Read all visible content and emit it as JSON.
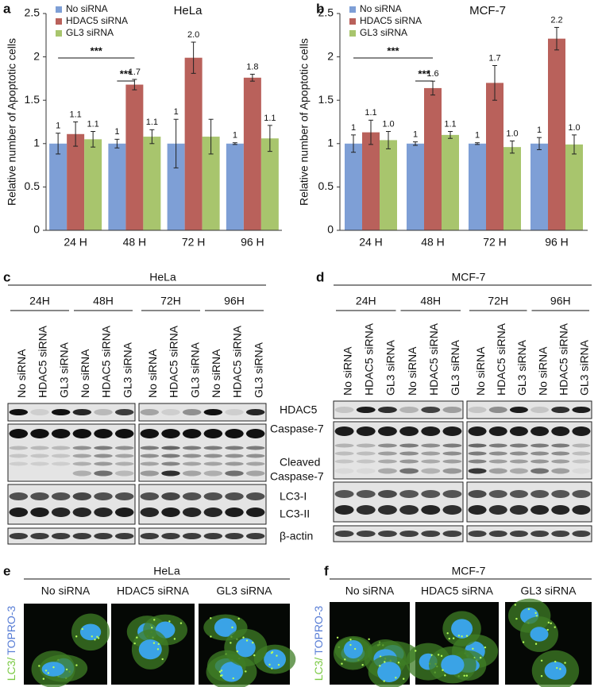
{
  "chart_data": [
    {
      "type": "bar",
      "panel": "a",
      "title": "HeLa",
      "y_label": "Relative number of Apoptotic cells",
      "categories": [
        "24 H",
        "48 H",
        "72 H",
        "96 H"
      ],
      "series": [
        {
          "name": "No siRNA",
          "color": "#7e9fd6",
          "values": [
            1,
            1,
            1,
            1
          ],
          "errors": [
            0.12,
            0.05,
            0.28,
            0.01
          ],
          "value_labels": [
            "1",
            "1",
            "1",
            "1"
          ]
        },
        {
          "name": "HDAC5 siRNA",
          "color": "#b9615b",
          "values": [
            1.11,
            1.68,
            1.99,
            1.76
          ],
          "errors": [
            0.14,
            0.06,
            0.18,
            0.04
          ],
          "value_labels": [
            "1.1",
            "1.7",
            "2.0",
            "1.8"
          ]
        },
        {
          "name": "GL3 siRNA",
          "color": "#a8c56d",
          "values": [
            1.05,
            1.08,
            1.08,
            1.06
          ],
          "errors": [
            0.09,
            0.08,
            0.2,
            0.15
          ],
          "value_labels": [
            "1.1",
            "1.1",
            null,
            "1.1"
          ]
        }
      ],
      "ylim": [
        0,
        2.5
      ],
      "yticks": [
        0,
        0.5,
        1,
        1.5,
        2,
        2.5
      ],
      "grid": false,
      "annotations": [
        {
          "text": "***"
        },
        {
          "text": "***"
        }
      ]
    },
    {
      "type": "bar",
      "panel": "b",
      "title": "MCF-7",
      "y_label": "Relative number of Apoptotic cells",
      "categories": [
        "24 H",
        "48 H",
        "72 H",
        "96 H"
      ],
      "series": [
        {
          "name": "No siRNA",
          "color": "#7e9fd6",
          "values": [
            1,
            1,
            1,
            1
          ],
          "errors": [
            0.1,
            0.02,
            0.01,
            0.07
          ],
          "value_labels": [
            "1",
            "1",
            "1",
            "1"
          ]
        },
        {
          "name": "HDAC5 siRNA",
          "color": "#b9615b",
          "values": [
            1.13,
            1.64,
            1.7,
            2.21
          ],
          "errors": [
            0.14,
            0.08,
            0.2,
            0.13
          ],
          "value_labels": [
            "1.1",
            "1.6",
            "1.7",
            "2.2"
          ]
        },
        {
          "name": "GL3 siRNA",
          "color": "#a8c56d",
          "values": [
            1.04,
            1.1,
            0.96,
            0.99
          ],
          "errors": [
            0.1,
            0.04,
            0.07,
            0.11
          ],
          "value_labels": [
            "1.0",
            "1.1",
            "1.0",
            "1.0"
          ]
        }
      ],
      "ylim": [
        0,
        2.5
      ],
      "yticks": [
        0,
        0.5,
        1,
        1.5,
        2,
        2.5
      ],
      "grid": false,
      "annotations": [
        {
          "text": "***"
        },
        {
          "text": "***"
        }
      ]
    }
  ],
  "blots": [
    {
      "panel": "c",
      "title": "HeLa",
      "time_points": [
        "24H",
        "48H",
        "72H",
        "96H"
      ],
      "lanes": [
        "No siRNA",
        "HDAC5 siRNA",
        "GL3 siRNA"
      ],
      "band_labels": [
        "HDAC5",
        "Caspase-7",
        [
          "Cleaved",
          "Caspase-7"
        ],
        "LC3-I",
        "LC3-II",
        "β-actin"
      ]
    },
    {
      "panel": "d",
      "title": "MCF-7",
      "time_points": [
        "24H",
        "48H",
        "72H",
        "96H"
      ],
      "lanes": [
        "No siRNA",
        "HDAC5 siRNA",
        "GL3 siRNA"
      ]
    }
  ],
  "micrographs": [
    {
      "panel": "e",
      "title": "HeLa",
      "conditions": [
        "No siRNA",
        "HDAC5 siRNA",
        "GL3 siRNA"
      ],
      "stain_label": [
        "LC3/",
        "TOPRO-3"
      ]
    },
    {
      "panel": "f",
      "title": "MCF-7",
      "conditions": [
        "No siRNA",
        "HDAC5 siRNA",
        "GL3 siRNA"
      ],
      "stain_label": [
        "LC3/",
        "TOPRO-3"
      ]
    }
  ]
}
